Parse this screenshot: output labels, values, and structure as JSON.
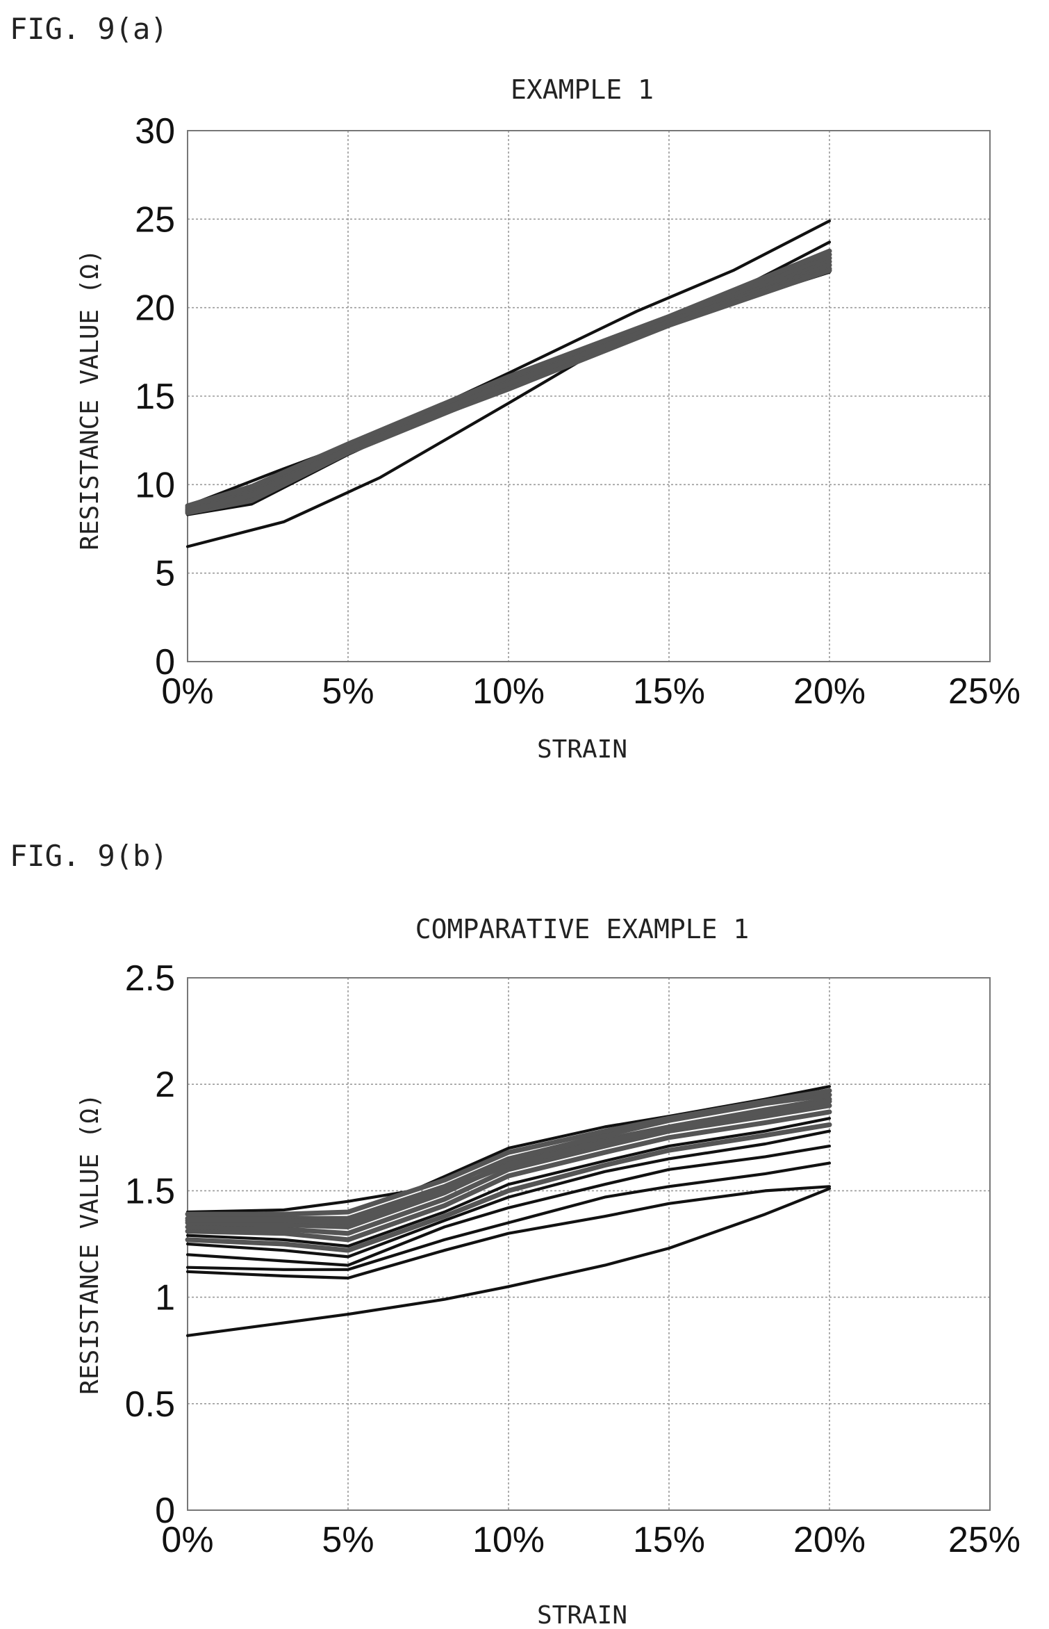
{
  "figures": [
    {
      "label": "FIG. 9(a)"
    },
    {
      "label": "FIG. 9(b)"
    }
  ],
  "chart_data": [
    {
      "type": "line",
      "title": "EXAMPLE 1",
      "xlabel": "STRAIN",
      "ylabel": "RESISTANCE VALUE (Ω)",
      "xlim": [
        0,
        25
      ],
      "ylim": [
        0,
        30
      ],
      "x_unit": "%",
      "x_ticks": [
        "0%",
        "5%",
        "10%",
        "15%",
        "20%",
        "25%"
      ],
      "y_ticks": [
        "0",
        "5",
        "10",
        "15",
        "20",
        "25",
        "30"
      ],
      "grid": true,
      "series": [
        {
          "color": "#111111",
          "x": [
            0,
            3,
            6,
            10,
            14,
            17,
            20
          ],
          "y": [
            8.8,
            10.9,
            12.9,
            16.3,
            19.8,
            22.1,
            24.9
          ]
        },
        {
          "color": "#111111",
          "x": [
            0,
            2,
            5,
            10,
            15,
            20
          ],
          "y": [
            8.3,
            8.9,
            11.7,
            15.9,
            19.0,
            23.7
          ]
        },
        {
          "color": "#111111",
          "x": [
            0,
            3,
            6,
            10,
            13,
            16,
            20
          ],
          "y": [
            6.5,
            7.9,
            10.4,
            14.6,
            17.8,
            19.7,
            22.0
          ]
        },
        {
          "color": "#555555",
          "x": [
            0,
            2,
            5,
            10,
            15,
            20
          ],
          "y": [
            8.6,
            9.8,
            12.2,
            16.0,
            19.3,
            23.0
          ]
        },
        {
          "color": "#555555",
          "x": [
            0,
            2,
            5,
            10,
            15,
            20
          ],
          "y": [
            8.7,
            9.6,
            12.0,
            15.8,
            19.4,
            22.8
          ]
        },
        {
          "color": "#555555",
          "x": [
            0,
            2,
            5,
            10,
            15,
            20
          ],
          "y": [
            8.5,
            9.3,
            11.9,
            15.6,
            19.1,
            22.6
          ]
        },
        {
          "color": "#555555",
          "x": [
            0,
            2,
            5,
            10,
            15,
            20
          ],
          "y": [
            8.4,
            9.1,
            11.8,
            15.5,
            19.0,
            22.4
          ]
        },
        {
          "color": "#555555",
          "x": [
            0,
            2,
            5,
            10,
            15,
            20
          ],
          "y": [
            8.6,
            9.5,
            12.1,
            15.7,
            19.2,
            22.2
          ]
        },
        {
          "color": "#555555",
          "x": [
            0,
            2,
            5,
            10,
            15,
            20
          ],
          "y": [
            8.8,
            9.9,
            12.3,
            16.1,
            19.5,
            23.2
          ]
        },
        {
          "color": "#555555",
          "x": [
            0,
            2,
            5,
            10,
            15,
            20
          ],
          "y": [
            8.5,
            9.4,
            12.0,
            15.4,
            19.0,
            22.1
          ]
        }
      ]
    },
    {
      "type": "line",
      "title": "COMPARATIVE EXAMPLE 1",
      "xlabel": "STRAIN",
      "ylabel": "RESISTANCE VALUE (Ω)",
      "xlim": [
        0,
        25
      ],
      "ylim": [
        0,
        2.5
      ],
      "x_unit": "%",
      "x_ticks": [
        "0%",
        "5%",
        "10%",
        "15%",
        "20%",
        "25%"
      ],
      "y_ticks": [
        "0",
        "0.5",
        "1",
        "1.5",
        "2",
        "2.5"
      ],
      "grid": true,
      "series": [
        {
          "color": "#111111",
          "x": [
            0,
            3,
            5,
            8,
            10,
            13,
            15,
            18,
            20
          ],
          "y": [
            0.82,
            0.88,
            0.92,
            0.99,
            1.05,
            1.15,
            1.23,
            1.39,
            1.51
          ]
        },
        {
          "color": "#111111",
          "x": [
            0,
            3,
            5,
            8,
            10,
            13,
            15,
            18,
            20
          ],
          "y": [
            1.12,
            1.1,
            1.09,
            1.22,
            1.3,
            1.38,
            1.44,
            1.5,
            1.52
          ]
        },
        {
          "color": "#111111",
          "x": [
            0,
            3,
            5,
            8,
            10,
            13,
            15,
            18,
            20
          ],
          "y": [
            1.14,
            1.13,
            1.13,
            1.27,
            1.35,
            1.47,
            1.52,
            1.58,
            1.63
          ]
        },
        {
          "color": "#111111",
          "x": [
            0,
            3,
            5,
            8,
            10,
            13,
            15,
            18,
            20
          ],
          "y": [
            1.2,
            1.17,
            1.15,
            1.33,
            1.42,
            1.53,
            1.6,
            1.66,
            1.71
          ]
        },
        {
          "color": "#111111",
          "x": [
            0,
            3,
            5,
            8,
            10,
            13,
            15,
            18,
            20
          ],
          "y": [
            1.25,
            1.22,
            1.19,
            1.36,
            1.47,
            1.59,
            1.65,
            1.72,
            1.78
          ]
        },
        {
          "color": "#111111",
          "x": [
            0,
            3,
            5,
            8,
            10,
            13,
            15,
            18,
            20
          ],
          "y": [
            1.29,
            1.27,
            1.24,
            1.4,
            1.53,
            1.64,
            1.71,
            1.78,
            1.84
          ]
        },
        {
          "color": "#111111",
          "x": [
            0,
            3,
            5,
            7,
            10,
            13,
            15,
            18,
            20
          ],
          "y": [
            1.4,
            1.41,
            1.45,
            1.5,
            1.7,
            1.8,
            1.85,
            1.93,
            1.99
          ]
        },
        {
          "color": "#555555",
          "x": [
            0,
            3,
            5,
            8,
            10,
            13,
            15,
            18,
            20
          ],
          "y": [
            1.31,
            1.3,
            1.27,
            1.43,
            1.57,
            1.68,
            1.75,
            1.82,
            1.87
          ]
        },
        {
          "color": "#555555",
          "x": [
            0,
            3,
            5,
            8,
            10,
            13,
            15,
            18,
            20
          ],
          "y": [
            1.33,
            1.32,
            1.3,
            1.46,
            1.6,
            1.71,
            1.78,
            1.85,
            1.9
          ]
        },
        {
          "color": "#555555",
          "x": [
            0,
            3,
            5,
            8,
            10,
            13,
            15,
            18,
            20
          ],
          "y": [
            1.35,
            1.34,
            1.33,
            1.49,
            1.63,
            1.74,
            1.8,
            1.88,
            1.93
          ]
        },
        {
          "color": "#555555",
          "x": [
            0,
            3,
            5,
            8,
            10,
            13,
            15,
            18,
            20
          ],
          "y": [
            1.37,
            1.37,
            1.37,
            1.52,
            1.65,
            1.76,
            1.83,
            1.91,
            1.95
          ]
        },
        {
          "color": "#555555",
          "x": [
            0,
            3,
            5,
            8,
            10,
            13,
            15,
            18,
            20
          ],
          "y": [
            1.39,
            1.39,
            1.4,
            1.55,
            1.68,
            1.78,
            1.84,
            1.92,
            1.97
          ]
        },
        {
          "color": "#555555",
          "x": [
            0,
            3,
            5,
            8,
            10,
            13,
            15,
            18,
            20
          ],
          "y": [
            1.27,
            1.25,
            1.22,
            1.38,
            1.5,
            1.62,
            1.69,
            1.76,
            1.81
          ]
        },
        {
          "color": "#555555",
          "x": [
            0,
            3,
            5,
            8,
            10,
            13,
            15,
            18,
            20
          ],
          "y": [
            1.36,
            1.36,
            1.35,
            1.5,
            1.62,
            1.73,
            1.79,
            1.87,
            1.92
          ]
        }
      ]
    }
  ]
}
